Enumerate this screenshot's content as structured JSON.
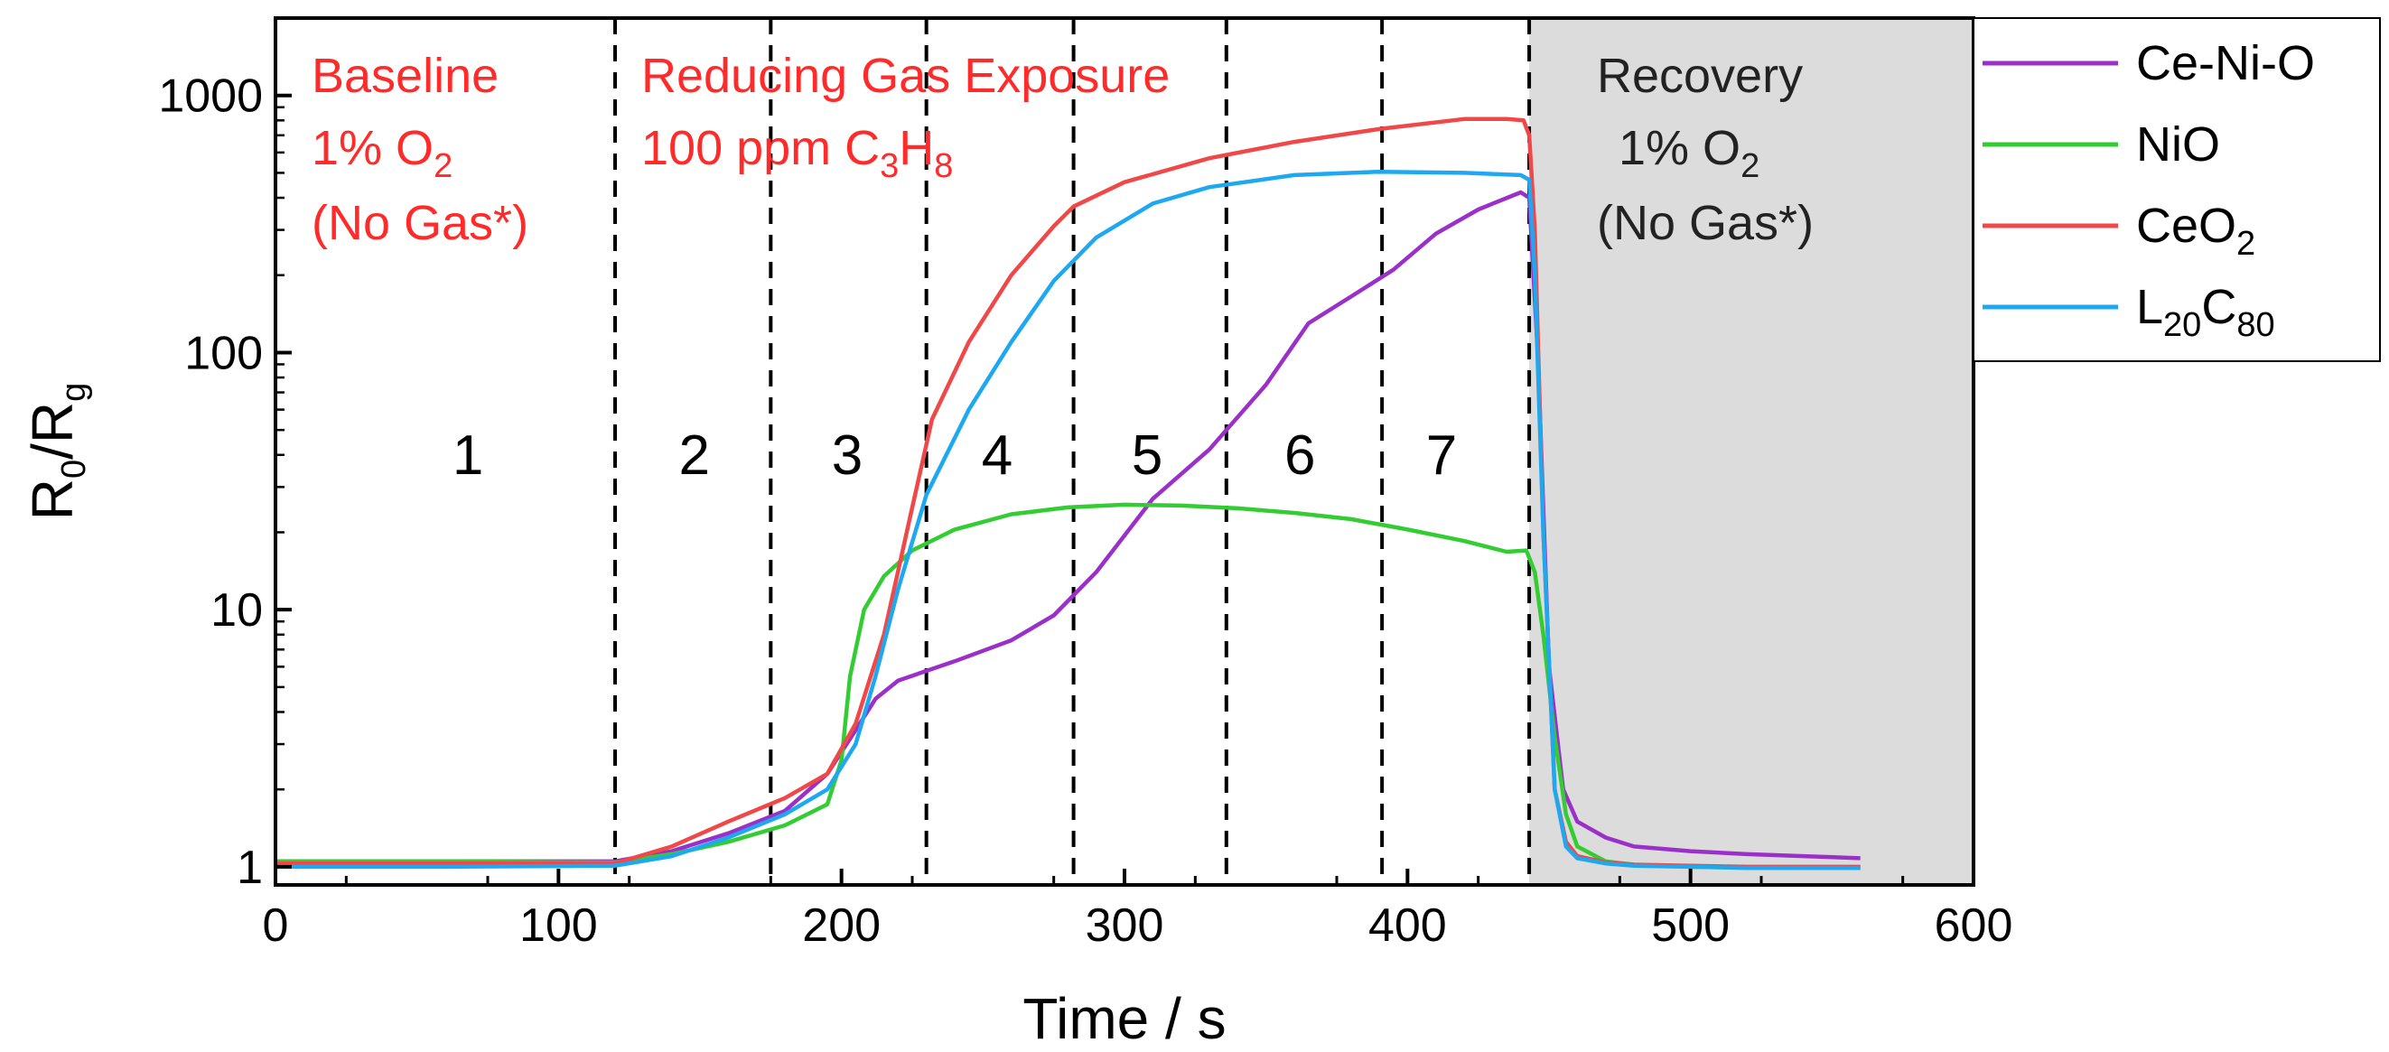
{
  "chart_data": {
    "type": "line",
    "title": "",
    "xlabel": "Time / s",
    "ylabel": {
      "main": "R",
      "sub0": "0",
      "slash": "/R",
      "sub1": "g"
    },
    "xlim": [
      0,
      600
    ],
    "ylim": [
      0.85,
      2000
    ],
    "yscale": "log",
    "x_ticks": [
      0,
      100,
      200,
      300,
      400,
      500,
      600
    ],
    "x_tick_labels": [
      "0",
      "100",
      "200",
      "300",
      "400",
      "500",
      "600"
    ],
    "y_ticks": [
      1,
      10,
      100,
      1000
    ],
    "y_tick_labels": [
      "1",
      "10",
      "100",
      "1000"
    ],
    "shaded_region": {
      "x_start": 443,
      "x_end": 600,
      "color": "#dcdcdc"
    },
    "phase_boundaries": [
      120,
      175,
      230,
      282,
      336,
      391,
      443
    ],
    "regions": [
      {
        "label": "1",
        "x": 68
      },
      {
        "label": "2",
        "x": 148
      },
      {
        "label": "3",
        "x": 202
      },
      {
        "label": "4",
        "x": 255
      },
      {
        "label": "5",
        "x": 308
      },
      {
        "label": "6",
        "x": 362
      },
      {
        "label": "7",
        "x": 412
      }
    ],
    "annotations": {
      "baseline": {
        "line1": "Baseline",
        "line2_pre": "1% O",
        "line2_sub": "2",
        "line3": "(No Gas*)"
      },
      "exposure": {
        "line1": "Reducing Gas Exposure",
        "line2_pre": "100 ppm C",
        "line2_sub1": "3",
        "line2_mid": "H",
        "line2_sub2": "8"
      },
      "recovery": {
        "line1": "Recovery",
        "line2_pre": "1% O",
        "line2_sub": "2",
        "line3": "(No Gas*)"
      }
    },
    "legend": {
      "position": "outside-right-top",
      "entries": [
        {
          "key": "ce_ni_o",
          "label": "Ce-Ni-O",
          "color": "#9b30c8"
        },
        {
          "key": "nio",
          "label": "NiO",
          "color": "#33cc33"
        },
        {
          "key": "ceo2",
          "label_pre": "CeO",
          "label_sub": "2",
          "color": "#f04848"
        },
        {
          "key": "l20c80",
          "label_pre": "L",
          "label_sub": "20",
          "label_mid": "C",
          "label_sub2": "80",
          "color": "#1ea8f0"
        }
      ]
    },
    "series": [
      {
        "name": "Ce-Ni-O",
        "color": "#9b30c8",
        "x": [
          0,
          60,
          120,
          140,
          160,
          180,
          195,
          205,
          212,
          220,
          240,
          260,
          275,
          290,
          310,
          330,
          350,
          365,
          380,
          395,
          410,
          425,
          440,
          443,
          446,
          450,
          455,
          460,
          470,
          480,
          500,
          520,
          540,
          560
        ],
        "y": [
          1.05,
          1.05,
          1.05,
          1.15,
          1.35,
          1.65,
          2.3,
          3.4,
          4.5,
          5.3,
          6.3,
          7.6,
          9.5,
          14,
          27,
          42,
          75,
          130,
          165,
          210,
          290,
          360,
          420,
          400,
          100,
          6,
          2.0,
          1.5,
          1.3,
          1.2,
          1.15,
          1.12,
          1.1,
          1.08
        ]
      },
      {
        "name": "NiO",
        "color": "#33cc33",
        "x": [
          0,
          60,
          120,
          140,
          160,
          180,
          195,
          200,
          203,
          208,
          215,
          225,
          240,
          260,
          280,
          300,
          320,
          340,
          360,
          380,
          400,
          420,
          435,
          442,
          445,
          448,
          452,
          456,
          460,
          470,
          480,
          500,
          520,
          540,
          560
        ],
        "y": [
          1.05,
          1.05,
          1.04,
          1.12,
          1.25,
          1.45,
          1.75,
          2.6,
          5.5,
          10,
          13.5,
          17,
          20.5,
          23.5,
          25,
          25.6,
          25.4,
          24.8,
          23.8,
          22.5,
          20.5,
          18.5,
          16.8,
          17,
          14,
          8,
          3.2,
          1.6,
          1.2,
          1.05,
          1.02,
          1.0,
          0.99,
          0.99,
          0.99
        ]
      },
      {
        "name": "CeO2",
        "color": "#f04848",
        "x": [
          0,
          60,
          120,
          140,
          160,
          180,
          195,
          205,
          215,
          225,
          232,
          245,
          260,
          275,
          282,
          300,
          330,
          360,
          390,
          420,
          435,
          441,
          443,
          445,
          448,
          452,
          456,
          460,
          470,
          480,
          500,
          520,
          540,
          560
        ],
        "y": [
          1.03,
          1.03,
          1.03,
          1.2,
          1.5,
          1.85,
          2.3,
          3.6,
          8,
          25,
          55,
          110,
          200,
          310,
          370,
          460,
          570,
          660,
          740,
          810,
          810,
          800,
          700,
          300,
          20,
          2.0,
          1.25,
          1.1,
          1.04,
          1.02,
          1.01,
          1.0,
          1.0,
          1.0
        ]
      },
      {
        "name": "L20C80",
        "color": "#1ea8f0",
        "x": [
          0,
          60,
          120,
          140,
          160,
          180,
          195,
          205,
          212,
          220,
          230,
          245,
          260,
          275,
          290,
          310,
          330,
          360,
          390,
          420,
          440,
          443,
          445,
          448,
          452,
          456,
          460,
          470,
          480,
          500,
          520,
          540,
          560
        ],
        "y": [
          1.0,
          1.0,
          1.01,
          1.1,
          1.3,
          1.6,
          2.0,
          3.0,
          5.5,
          12,
          28,
          60,
          110,
          190,
          280,
          380,
          440,
          490,
          505,
          500,
          490,
          470,
          200,
          20,
          2.0,
          1.2,
          1.08,
          1.03,
          1.01,
          1.0,
          0.99,
          0.99,
          0.99
        ]
      }
    ]
  }
}
